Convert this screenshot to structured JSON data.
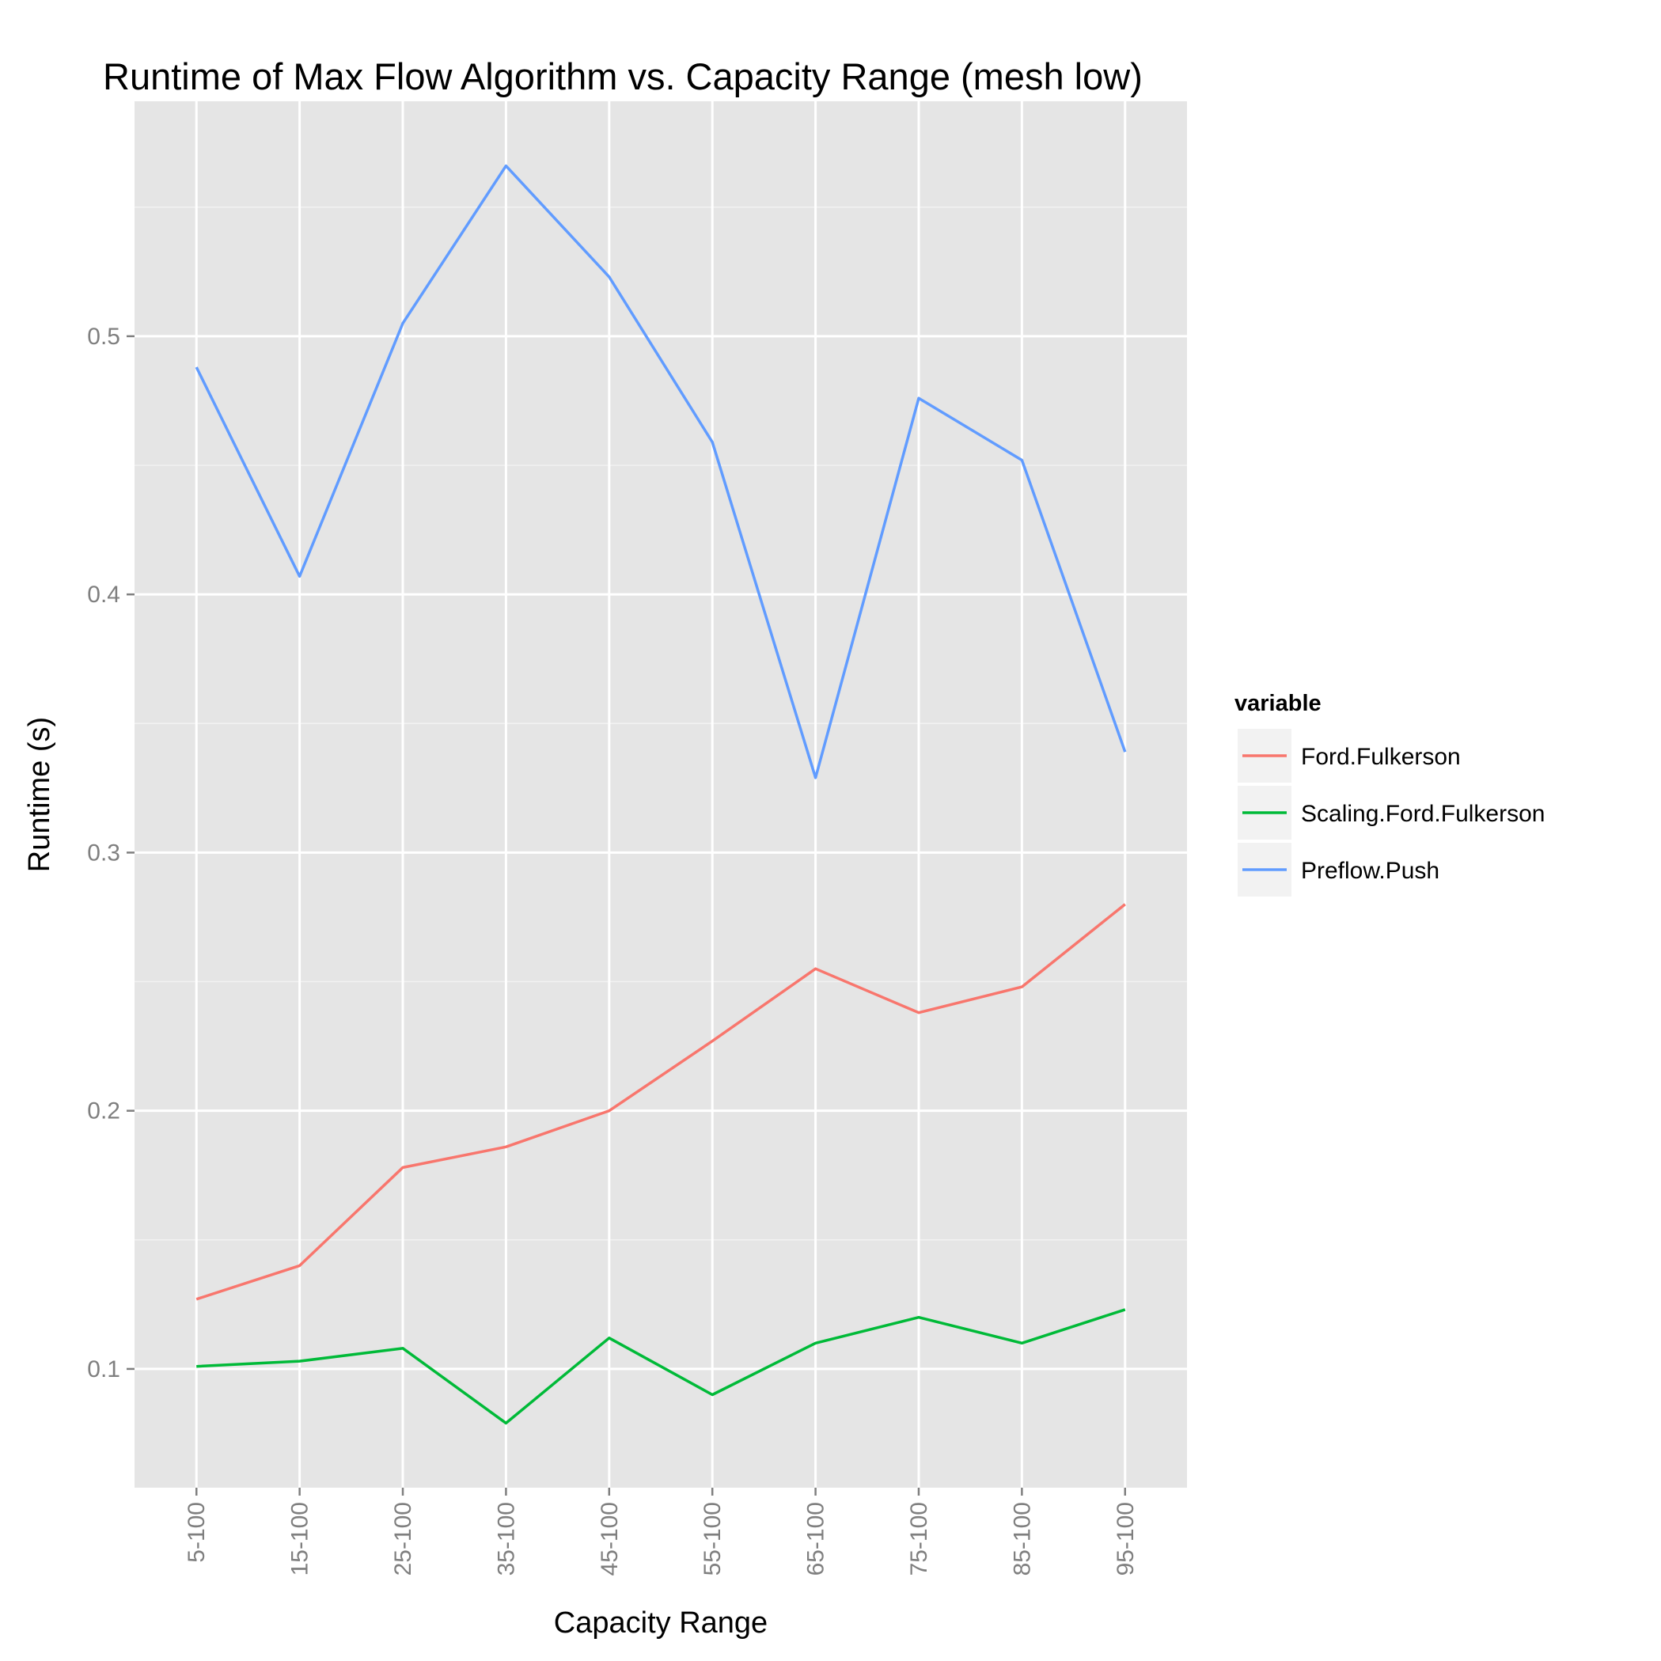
{
  "chart_data": {
    "type": "line",
    "title": "Runtime of Max Flow Algorithm vs. Capacity Range (mesh low)",
    "xlabel": "Capacity Range",
    "ylabel": "Runtime (s)",
    "categories": [
      "5-100",
      "15-100",
      "25-100",
      "35-100",
      "45-100",
      "55-100",
      "65-100",
      "75-100",
      "85-100",
      "95-100"
    ],
    "ylim": [
      0.054,
      0.591
    ],
    "yticks": [
      "0.1",
      "0.2",
      "0.3",
      "0.4",
      "0.5"
    ],
    "grid": true,
    "legend_position": "right",
    "legend_title": "variable",
    "series": [
      {
        "name": "Ford.Fulkerson",
        "color": "#f8766d",
        "values": [
          0.127,
          0.14,
          0.178,
          0.186,
          0.2,
          0.227,
          0.255,
          0.238,
          0.248,
          0.28
        ]
      },
      {
        "name": "Scaling.Ford.Fulkerson",
        "color": "#00ba38",
        "values": [
          0.101,
          0.103,
          0.108,
          0.079,
          0.112,
          0.09,
          0.11,
          0.12,
          0.11,
          0.123
        ]
      },
      {
        "name": "Preflow.Push",
        "color": "#619cff",
        "values": [
          0.488,
          0.407,
          0.505,
          0.566,
          0.523,
          0.459,
          0.329,
          0.476,
          0.452,
          0.339
        ]
      }
    ],
    "colors": {
      "panel": "#e5e5e5",
      "grid_major": "#ffffff",
      "grid_minor": "#f2f2f2",
      "tick": "#7f7f7f",
      "legend_key": "#f2f2f2"
    }
  }
}
